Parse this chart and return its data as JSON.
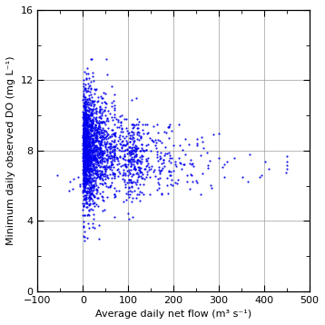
{
  "xlabel": "Average daily net flow (m³ s⁻¹)",
  "ylabel": "Minimum daily observed DO (mg L⁻¹)",
  "xlim": [
    -100,
    500
  ],
  "ylim": [
    0,
    16
  ],
  "xticks": [
    -100,
    0,
    100,
    200,
    300,
    400,
    500
  ],
  "yticks": [
    0,
    4,
    8,
    12,
    16
  ],
  "dot_color": "#0000ee",
  "dot_size": 2.5,
  "dot_alpha": 0.9,
  "seed": 42,
  "background_color": "#ffffff",
  "grid_color": "#999999"
}
